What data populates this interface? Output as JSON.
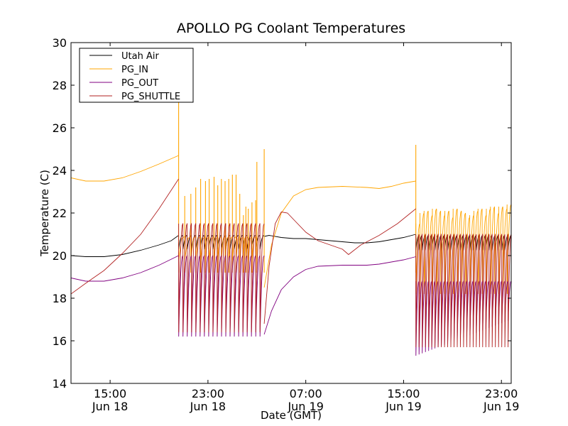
{
  "chart_data": {
    "type": "line",
    "title": "APOLLO PG Coolant Temperatures",
    "xlabel": "Date (GMT)",
    "ylabel": "Temperature (C)",
    "x_units": "hours since Jun 18 00:00 GMT",
    "xlim": [
      11.8,
      47.8
    ],
    "ylim": [
      14,
      30
    ],
    "yticks": [
      14,
      16,
      18,
      20,
      22,
      24,
      26,
      28,
      30
    ],
    "xticks": [
      {
        "x": 15,
        "line1": "15:00",
        "line2": "Jun 18"
      },
      {
        "x": 23,
        "line1": "23:00",
        "line2": "Jun 18"
      },
      {
        "x": 31,
        "line1": "07:00",
        "line2": "Jun 19"
      },
      {
        "x": 39,
        "line1": "15:00",
        "line2": "Jun 19"
      },
      {
        "x": 47,
        "line1": "23:00",
        "line2": "Jun 19"
      }
    ],
    "grid": false,
    "legend": {
      "placement": "top-left"
    },
    "series": [
      {
        "name": "Utah Air",
        "color": "#000000",
        "smooth": [
          [
            11.8,
            20.0
          ],
          [
            13.0,
            19.95
          ],
          [
            14.5,
            19.95
          ],
          [
            16.0,
            20.05
          ],
          [
            17.5,
            20.25
          ],
          [
            19.0,
            20.5
          ],
          [
            20.0,
            20.7
          ],
          [
            20.6,
            20.95
          ]
        ],
        "cycling": [
          {
            "start": 20.6,
            "end": 27.6,
            "high": 20.95,
            "low": 20.3,
            "count": 20
          }
        ],
        "smooth2": [
          [
            27.6,
            20.9
          ],
          [
            28.0,
            20.95
          ],
          [
            29.0,
            20.85
          ],
          [
            30.0,
            20.8
          ],
          [
            31.0,
            20.8
          ],
          [
            32.0,
            20.75
          ],
          [
            33.0,
            20.7
          ],
          [
            34.0,
            20.65
          ],
          [
            35.0,
            20.6
          ],
          [
            36.0,
            20.6
          ],
          [
            37.0,
            20.65
          ],
          [
            38.0,
            20.75
          ],
          [
            39.0,
            20.85
          ],
          [
            40.0,
            21.0
          ]
        ],
        "cycling2": [
          {
            "start": 40.0,
            "end": 47.8,
            "high": 20.95,
            "low": 20.25,
            "count": 30
          }
        ]
      },
      {
        "name": "PG_IN",
        "color": "#ffa500",
        "smooth": [
          [
            11.8,
            23.65
          ],
          [
            13.0,
            23.5
          ],
          [
            14.5,
            23.5
          ],
          [
            16.0,
            23.65
          ],
          [
            17.5,
            23.95
          ],
          [
            19.0,
            24.3
          ],
          [
            20.6,
            24.7
          ]
        ],
        "spikes": [
          {
            "x": 20.6,
            "peak": 27.4
          },
          {
            "x": 21.1,
            "peak": 22.8
          },
          {
            "x": 21.6,
            "peak": 22.9
          },
          {
            "x": 22.0,
            "peak": 23.2
          },
          {
            "x": 22.4,
            "peak": 23.6
          },
          {
            "x": 22.8,
            "peak": 23.5
          },
          {
            "x": 23.1,
            "peak": 23.6
          },
          {
            "x": 23.5,
            "peak": 23.7
          },
          {
            "x": 23.8,
            "peak": 23.3
          },
          {
            "x": 24.1,
            "peak": 23.6
          },
          {
            "x": 24.4,
            "peak": 23.5
          },
          {
            "x": 24.7,
            "peak": 23.6
          },
          {
            "x": 25.0,
            "peak": 23.8
          },
          {
            "x": 25.3,
            "peak": 23.8
          },
          {
            "x": 25.6,
            "peak": 22.9
          },
          {
            "x": 25.9,
            "peak": 21.9
          },
          {
            "x": 26.1,
            "peak": 22.3
          },
          {
            "x": 26.3,
            "peak": 22.2
          },
          {
            "x": 26.6,
            "peak": 22.5
          },
          {
            "x": 26.9,
            "peak": 22.6
          },
          {
            "x": 27.0,
            "peak": 24.4
          },
          {
            "x": 27.6,
            "peak": 25.0
          }
        ],
        "cycle_low": 19.2,
        "smooth2": [
          [
            27.6,
            18.5
          ],
          [
            28.2,
            20.5
          ],
          [
            29.0,
            22.0
          ],
          [
            30.0,
            22.8
          ],
          [
            31.0,
            23.1
          ],
          [
            32.0,
            23.2
          ],
          [
            34.0,
            23.25
          ],
          [
            36.0,
            23.2
          ],
          [
            37.0,
            23.15
          ],
          [
            38.0,
            23.25
          ],
          [
            39.0,
            23.4
          ],
          [
            40.0,
            23.5
          ]
        ],
        "spikes2_first": {
          "x": 40.0,
          "peak": 25.2
        },
        "cycling2": [
          {
            "start": 40.0,
            "end": 47.8,
            "low": 18.2,
            "peaks": [
              21.5,
              22.0,
              22.1,
              21.9,
              22.2,
              22.1,
              21.9,
              22.1,
              21.8,
              22.2,
              22.1,
              22.0,
              21.8,
              21.9,
              22.1,
              22.2,
              21.9,
              22.2,
              22.3,
              22.0,
              22.3,
              22.2,
              22.4
            ]
          }
        ]
      },
      {
        "name": "PG_OUT",
        "color": "#800080",
        "smooth": [
          [
            11.8,
            18.95
          ],
          [
            13.0,
            18.8
          ],
          [
            14.5,
            18.8
          ],
          [
            16.0,
            18.95
          ],
          [
            17.5,
            19.2
          ],
          [
            19.0,
            19.55
          ],
          [
            20.6,
            20.0
          ]
        ],
        "cycling": [
          {
            "start": 20.6,
            "end": 27.6,
            "low": 16.2,
            "high": 20.0,
            "count": 20
          }
        ],
        "smooth2": [
          [
            27.6,
            16.3
          ],
          [
            28.2,
            17.4
          ],
          [
            29.0,
            18.4
          ],
          [
            30.0,
            19.0
          ],
          [
            31.0,
            19.35
          ],
          [
            32.0,
            19.5
          ],
          [
            34.0,
            19.55
          ],
          [
            36.0,
            19.55
          ],
          [
            37.0,
            19.6
          ],
          [
            38.0,
            19.7
          ],
          [
            39.0,
            19.8
          ],
          [
            40.0,
            19.95
          ]
        ],
        "cycling2": [
          {
            "start": 40.0,
            "end": 47.8,
            "low": 15.3,
            "low_end": 17.0,
            "high": 18.8,
            "count": 30
          }
        ]
      },
      {
        "name": "PG_SHUTTLE",
        "color": "#b22222",
        "smooth": [
          [
            11.8,
            18.2
          ],
          [
            13.0,
            18.7
          ],
          [
            14.5,
            19.3
          ],
          [
            16.0,
            20.1
          ],
          [
            17.5,
            21.0
          ],
          [
            19.0,
            22.2
          ],
          [
            20.6,
            23.6
          ]
        ],
        "cycling": [
          {
            "start": 20.6,
            "end": 27.6,
            "low": 16.4,
            "high": 21.5,
            "count": 20
          }
        ],
        "smooth2": [
          [
            27.6,
            16.8
          ],
          [
            28.0,
            19.5
          ],
          [
            28.5,
            21.5
          ],
          [
            29.0,
            22.05
          ],
          [
            29.5,
            22.0
          ],
          [
            30.0,
            21.7
          ],
          [
            31.0,
            21.1
          ],
          [
            32.0,
            20.7
          ],
          [
            33.0,
            20.5
          ],
          [
            34.0,
            20.3
          ],
          [
            34.5,
            20.05
          ],
          [
            35.5,
            20.5
          ],
          [
            37.0,
            20.95
          ],
          [
            38.5,
            21.5
          ],
          [
            40.0,
            22.2
          ]
        ],
        "cycling2": [
          {
            "start": 40.0,
            "end": 47.8,
            "low": 15.7,
            "high": 21.0,
            "count": 30
          }
        ]
      }
    ]
  }
}
